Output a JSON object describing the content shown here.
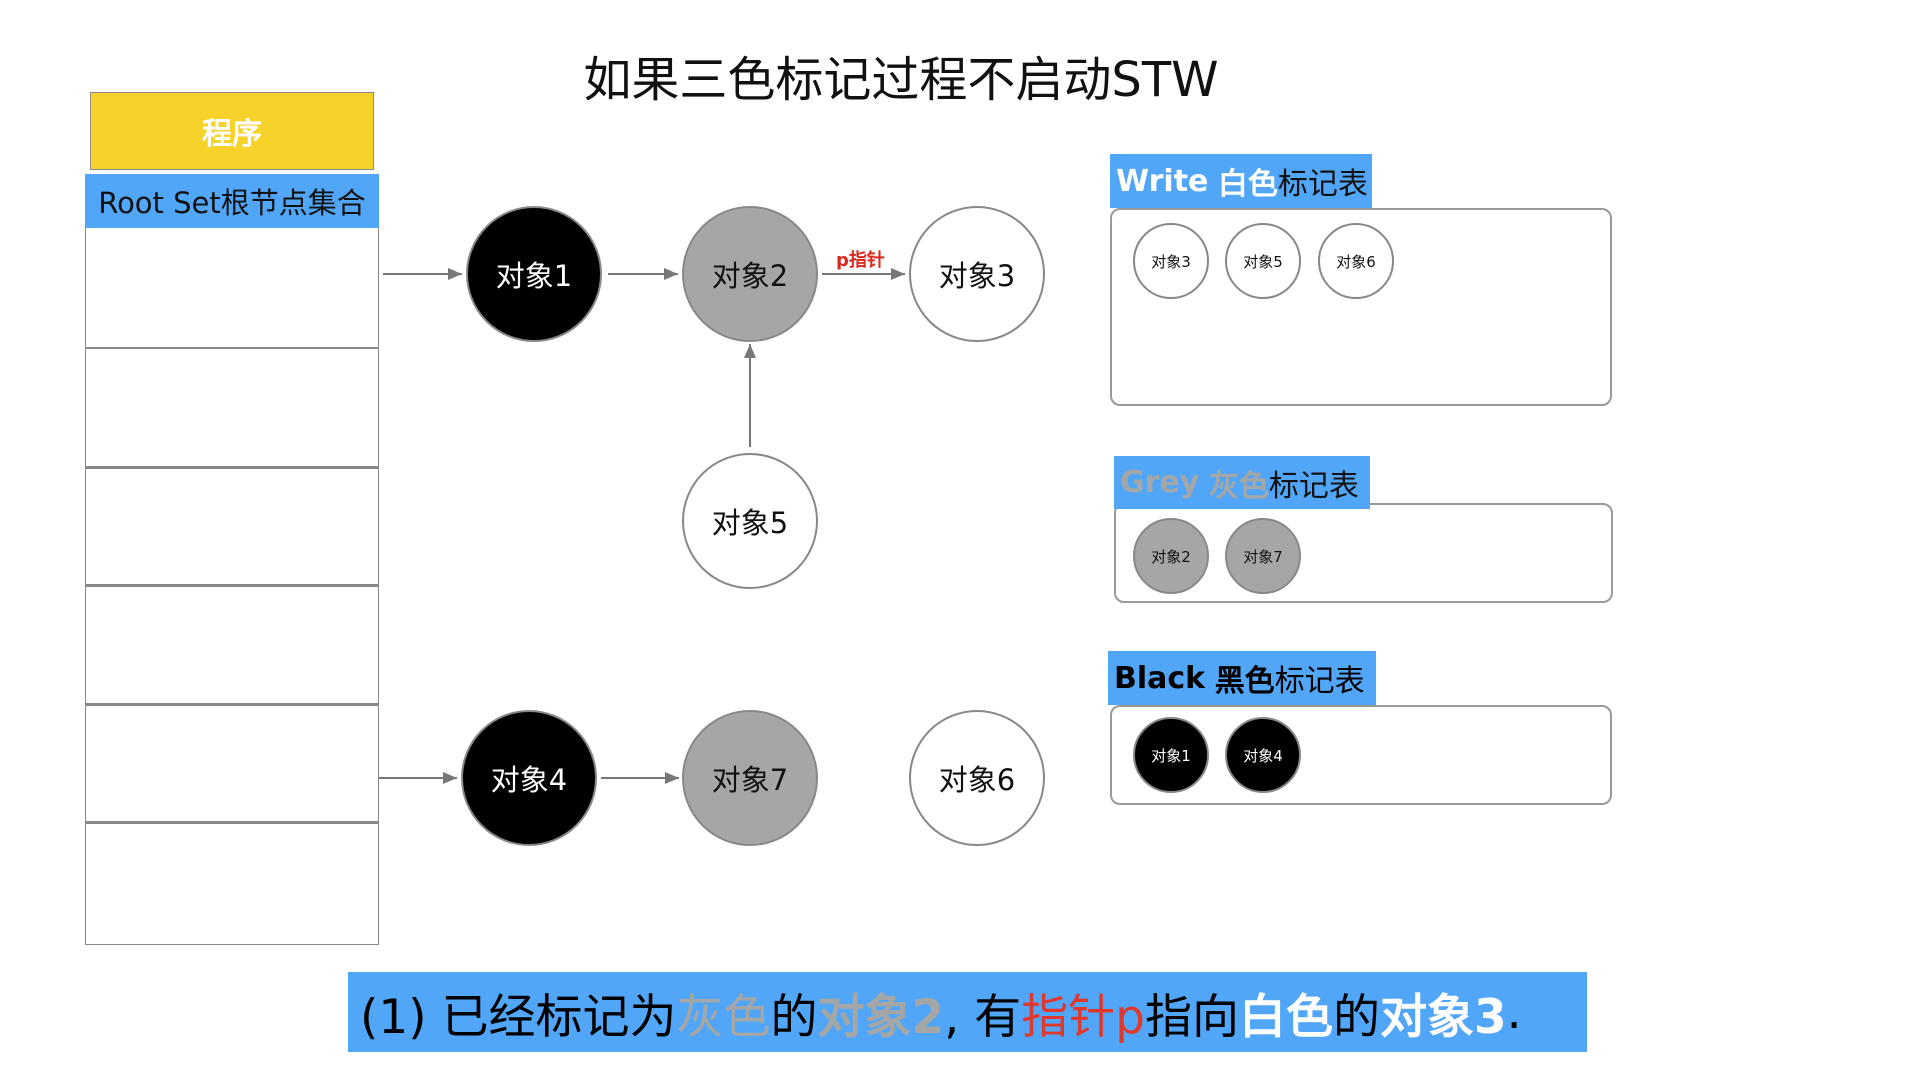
{
  "title": "如果三色标记过程不启动STW",
  "program_label": "程序",
  "root_set_label": "Root Set根节点集合",
  "objects": {
    "obj1": "对象1",
    "obj2": "对象2",
    "obj3": "对象3",
    "obj4": "对象4",
    "obj5": "对象5",
    "obj6": "对象6",
    "obj7": "对象7"
  },
  "pointer_label": "p指针",
  "tables": {
    "white": {
      "title_en": "Write",
      "title_color": "白色",
      "title_rest": "标记表",
      "items": [
        "对象3",
        "对象5",
        "对象6"
      ]
    },
    "grey": {
      "title_en": "Grey",
      "title_color": "灰色",
      "title_rest": "标记表",
      "items": [
        "对象2",
        "对象7"
      ]
    },
    "black": {
      "title_en": "Black",
      "title_color": "黑色",
      "title_rest": "标记表",
      "items": [
        "对象1",
        "对象4"
      ]
    }
  },
  "caption": {
    "p1": "(1) 已经标记为",
    "p2": "灰色",
    "p3": "的",
    "p4": "对象2",
    "p5": ", 有",
    "p6": "指针p",
    "p7": "指向",
    "p8": "白色",
    "p9": "的",
    "p10": "对象3",
    "p11": "."
  },
  "colors": {
    "blue": "#52a6f8",
    "yellow": "#f7d22a",
    "grey": "#a5a7a6",
    "red": "#e0382d",
    "black": "#000000"
  }
}
